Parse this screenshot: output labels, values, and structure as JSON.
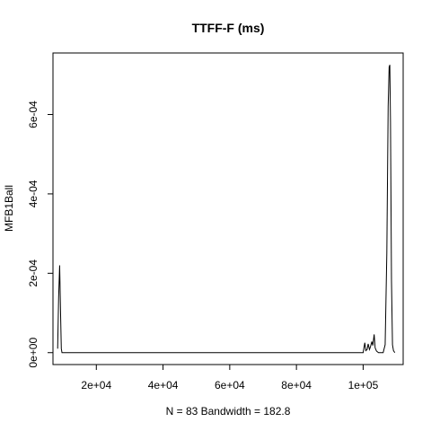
{
  "chart_data": {
    "type": "line",
    "title": "TTFF-F (ms)",
    "xlabel": "N = 83   Bandwidth = 182.8",
    "ylabel": "MFB1Ball",
    "xlim": [
      7000,
      112000
    ],
    "ylim": [
      -3e-05,
      0.000755
    ],
    "x_ticks": [
      20000,
      40000,
      60000,
      80000,
      100000
    ],
    "x_tick_labels": [
      "2e+04",
      "4e+04",
      "6e+04",
      "8e+04",
      "1e+05"
    ],
    "y_ticks": [
      0,
      0.0002,
      0.0004,
      0.0006
    ],
    "y_tick_labels": [
      "0e+00",
      "2e-04",
      "4e-04",
      "6e-04"
    ],
    "grid": false,
    "line_color": "#000000",
    "series": [
      {
        "x": [
          8400,
          8700,
          9000,
          9300,
          9500,
          9700,
          10000,
          10500,
          11000,
          50000,
          99500,
          100000,
          100300,
          100500,
          100800,
          101200,
          101500,
          101900,
          102200,
          102600,
          102900,
          103300,
          103600,
          104000,
          104600,
          105200,
          106000,
          106600,
          107100,
          107500,
          107800,
          108000,
          108200,
          108500,
          108800,
          109100,
          109500
        ],
        "y": [
          1e-05,
          0.00014,
          0.00022,
          9e-05,
          1e-05,
          0.0,
          0.0,
          0.0,
          0.0,
          0.0,
          0.0,
          0.0,
          1.5e-05,
          2.5e-05,
          5e-06,
          8e-06,
          2.2e-05,
          8e-06,
          1.5e-05,
          2.8e-05,
          1.8e-05,
          4.6e-05,
          1.2e-05,
          4e-06,
          0.0,
          0.0,
          0.0,
          2e-05,
          0.00025,
          0.00062,
          0.00072,
          0.000725,
          0.00058,
          0.00018,
          2e-05,
          5e-06,
          0.0
        ]
      }
    ]
  }
}
